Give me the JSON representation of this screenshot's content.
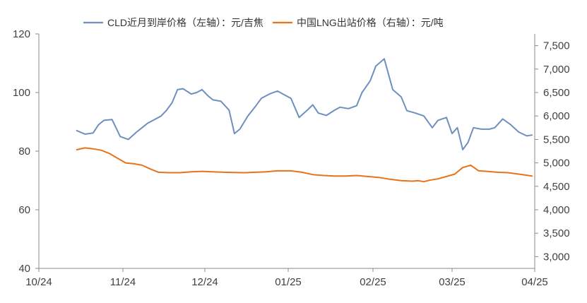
{
  "chart_data": {
    "type": "line",
    "legend_position": "top-center",
    "grid": false,
    "x_axis": {
      "ticks": [
        "10/24",
        "11/24",
        "12/24",
        "01/25",
        "02/25",
        "03/25",
        "04/25"
      ]
    },
    "y_left": {
      "range": [
        40,
        120
      ],
      "ticks": [
        "40",
        "60",
        "80",
        "100",
        "120"
      ],
      "tick_values": [
        40,
        60,
        80,
        100,
        120
      ]
    },
    "y_right": {
      "range": [
        2750,
        7750
      ],
      "ticks": [
        "3,000",
        "3,500",
        "4,000",
        "4,500",
        "5,000",
        "5,500",
        "6,000",
        "6,500",
        "7,000",
        "7,500"
      ],
      "tick_values": [
        3000,
        3500,
        4000,
        4500,
        5000,
        5500,
        6000,
        6500,
        7000,
        7500
      ]
    },
    "series": [
      {
        "name": "CLD近月到岸价格（左轴）：元/吉焦",
        "axis": "left",
        "color": "#6f8fbf",
        "x": [
          "2024-10-15",
          "2024-10-18",
          "2024-10-21",
          "2024-10-23",
          "2024-10-25",
          "2024-10-28",
          "2024-10-31",
          "2024-11-03",
          "2024-11-06",
          "2024-11-08",
          "2024-11-10",
          "2024-11-13",
          "2024-11-15",
          "2024-11-17",
          "2024-11-19",
          "2024-11-21",
          "2024-11-23",
          "2024-11-26",
          "2024-11-28",
          "2024-11-30",
          "2024-12-02",
          "2024-12-04",
          "2024-12-07",
          "2024-12-10",
          "2024-12-12",
          "2024-12-14",
          "2024-12-17",
          "2024-12-20",
          "2024-12-22",
          "2024-12-25",
          "2024-12-28",
          "2024-12-31",
          "2025-01-02",
          "2025-01-05",
          "2025-01-08",
          "2025-01-10",
          "2025-01-12",
          "2025-01-15",
          "2025-01-18",
          "2025-01-20",
          "2025-01-23",
          "2025-01-26",
          "2025-01-28",
          "2025-01-31",
          "2025-02-02",
          "2025-02-05",
          "2025-02-08",
          "2025-02-11",
          "2025-02-13",
          "2025-02-16",
          "2025-02-19",
          "2025-02-22",
          "2025-02-24",
          "2025-02-27",
          "2025-03-01",
          "2025-03-03",
          "2025-03-05",
          "2025-03-07",
          "2025-03-09",
          "2025-03-12",
          "2025-03-15",
          "2025-03-17",
          "2025-03-20",
          "2025-03-23",
          "2025-03-26",
          "2025-03-29",
          "2025-03-31"
        ],
        "values": [
          87,
          85.8,
          86.2,
          89,
          90.5,
          90.8,
          85,
          84,
          86.5,
          88,
          89.5,
          91,
          92,
          94,
          96.5,
          101,
          101.3,
          99.5,
          100,
          101,
          99,
          97.5,
          97,
          94,
          86,
          87.5,
          92,
          95.5,
          98,
          99.5,
          100.5,
          99,
          98,
          91.5,
          94,
          95.8,
          93,
          92.2,
          94,
          95,
          94.5,
          95.5,
          100,
          104,
          109,
          111.5,
          101,
          98.5,
          93.8,
          93,
          92,
          88,
          90.5,
          91.5,
          86,
          88,
          80.5,
          83,
          88,
          87.5,
          87.5,
          88,
          91,
          89,
          86.5,
          85.2,
          85.5
        ]
      },
      {
        "name": "中国LNG出站价格（右轴）：元/吨",
        "axis": "right",
        "color": "#e8731a",
        "x": [
          "2024-10-15",
          "2024-10-18",
          "2024-10-21",
          "2024-10-24",
          "2024-10-27",
          "2024-10-30",
          "2024-11-02",
          "2024-11-05",
          "2024-11-08",
          "2024-11-11",
          "2024-11-14",
          "2024-11-18",
          "2024-11-22",
          "2024-11-26",
          "2024-11-30",
          "2024-12-04",
          "2024-12-08",
          "2024-12-12",
          "2024-12-16",
          "2024-12-20",
          "2024-12-24",
          "2024-12-28",
          "2025-01-02",
          "2025-01-06",
          "2025-01-10",
          "2025-01-14",
          "2025-01-18",
          "2025-01-22",
          "2025-01-26",
          "2025-01-30",
          "2025-02-03",
          "2025-02-07",
          "2025-02-11",
          "2025-02-15",
          "2025-02-17",
          "2025-02-19",
          "2025-02-21",
          "2025-02-24",
          "2025-02-27",
          "2025-03-02",
          "2025-03-05",
          "2025-03-08",
          "2025-03-11",
          "2025-03-14",
          "2025-03-18",
          "2025-03-22",
          "2025-03-26",
          "2025-03-31"
        ],
        "values": [
          5280,
          5320,
          5300,
          5270,
          5200,
          5100,
          5000,
          4980,
          4950,
          4870,
          4800,
          4790,
          4790,
          4810,
          4820,
          4810,
          4800,
          4795,
          4790,
          4800,
          4810,
          4830,
          4830,
          4800,
          4750,
          4730,
          4720,
          4720,
          4730,
          4710,
          4690,
          4650,
          4620,
          4610,
          4620,
          4600,
          4630,
          4660,
          4710,
          4760,
          4900,
          4950,
          4830,
          4820,
          4800,
          4790,
          4760,
          4720
        ]
      }
    ]
  }
}
